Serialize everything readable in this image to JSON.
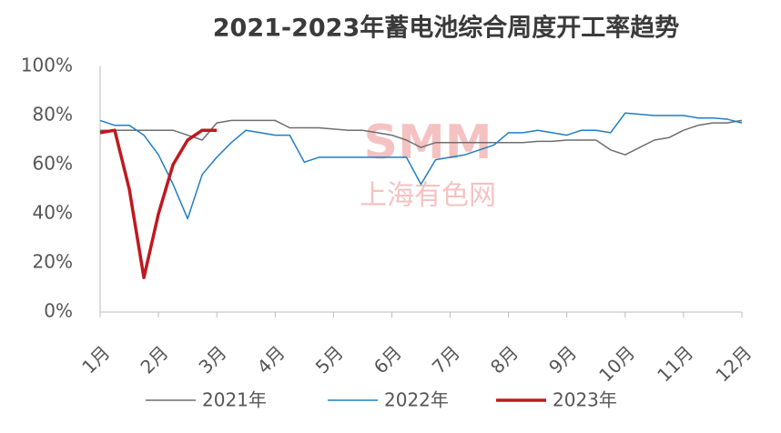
{
  "chart_data": {
    "type": "line",
    "title": "2021-2023年蓄电池综合周度开工率趋势",
    "watermark": [
      "SMM",
      "上海有色网"
    ],
    "x": [
      1,
      1.25,
      1.5,
      1.75,
      2,
      2.25,
      2.5,
      2.75,
      3,
      3.25,
      3.5,
      3.75,
      4,
      4.25,
      4.5,
      4.75,
      5,
      5.25,
      5.5,
      5.75,
      6,
      6.25,
      6.5,
      6.75,
      7,
      7.25,
      7.5,
      7.75,
      8,
      8.25,
      8.5,
      8.75,
      9,
      9.25,
      9.5,
      9.75,
      10,
      10.25,
      10.5,
      10.75,
      11,
      11.25,
      11.5,
      11.75,
      12
    ],
    "xlim": [
      1,
      12
    ],
    "xticks": [
      {
        "value": 1,
        "label": "1月"
      },
      {
        "value": 2,
        "label": "2月"
      },
      {
        "value": 3,
        "label": "3月"
      },
      {
        "value": 4,
        "label": "4月"
      },
      {
        "value": 5,
        "label": "5月"
      },
      {
        "value": 6,
        "label": "6月"
      },
      {
        "value": 7,
        "label": "7月"
      },
      {
        "value": 8,
        "label": "8月"
      },
      {
        "value": 9,
        "label": "9月"
      },
      {
        "value": 10,
        "label": "10月"
      },
      {
        "value": 11,
        "label": "11月"
      },
      {
        "value": 12,
        "label": "12月"
      }
    ],
    "ylim": [
      0,
      100
    ],
    "yticks": [
      {
        "value": 0,
        "label": "0%"
      },
      {
        "value": 20,
        "label": "20%"
      },
      {
        "value": 40,
        "label": "40%"
      },
      {
        "value": 60,
        "label": "60%"
      },
      {
        "value": 80,
        "label": "80%"
      },
      {
        "value": 100,
        "label": "100%"
      }
    ],
    "series": [
      {
        "name": "2021年",
        "color": "#6e6e6e",
        "width": 1.5,
        "values": [
          74,
          74,
          74,
          74,
          74,
          74,
          72,
          70,
          77,
          78,
          78,
          78,
          78,
          75,
          75,
          75,
          74.5,
          74,
          74,
          73,
          72,
          70,
          67,
          69,
          69,
          69,
          69,
          69,
          69,
          69,
          69.5,
          69.5,
          70,
          70,
          70,
          66,
          64,
          67,
          70,
          71,
          74,
          76,
          77,
          77,
          78
        ]
      },
      {
        "name": "2022年",
        "color": "#1f7ec4",
        "width": 1.5,
        "values": [
          78,
          76,
          76,
          72,
          64,
          52,
          38,
          56,
          63,
          69,
          74,
          73,
          72,
          72,
          61,
          63,
          63,
          63,
          63,
          63,
          63,
          63,
          52,
          62,
          63,
          64,
          66,
          68,
          73,
          73,
          74,
          73,
          72,
          74,
          74,
          73,
          81,
          80.5,
          80,
          80,
          80,
          79,
          79,
          78.5,
          77
        ]
      },
      {
        "name": "2023年",
        "color": "#c0181f",
        "width": 3.5,
        "values": [
          73,
          74,
          50,
          14,
          40,
          60,
          70,
          74,
          74,
          null,
          null,
          null,
          null,
          null,
          null,
          null,
          null,
          null,
          null,
          null,
          null,
          null,
          null,
          null,
          null,
          null,
          null,
          null,
          null,
          null,
          null,
          null,
          null,
          null,
          null,
          null,
          null,
          null,
          null,
          null,
          null,
          null,
          null,
          null,
          null
        ]
      }
    ]
  }
}
